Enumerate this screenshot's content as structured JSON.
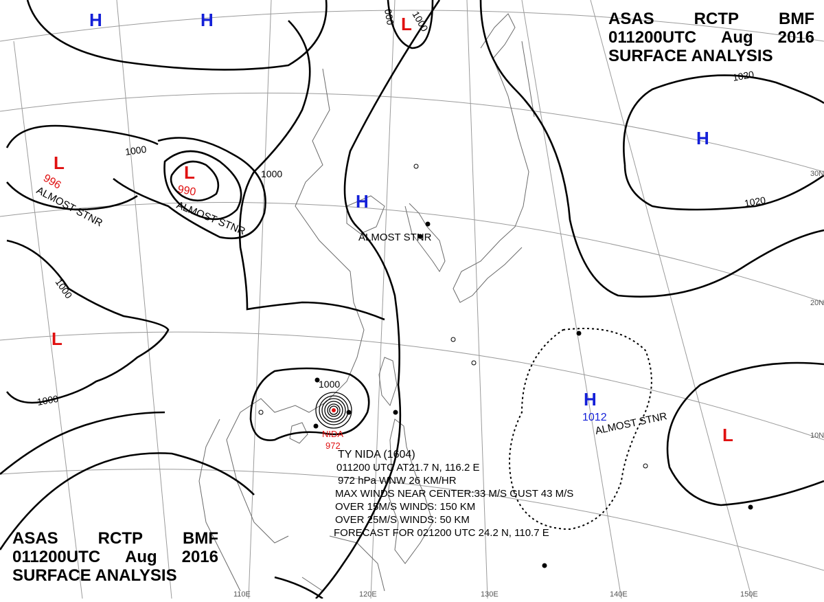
{
  "header_top": {
    "line1": [
      "ASAS",
      "RCTP",
      "BMF"
    ],
    "time": "011200UTC",
    "month": "Aug",
    "year": "2016",
    "title": "SURFACE ANALYSIS"
  },
  "header_bottom": {
    "line1": [
      "ASAS",
      "RCTP",
      "BMF"
    ],
    "time": "011200UTC",
    "month": "Aug",
    "year": "2016",
    "title": "SURFACE ANALYSIS"
  },
  "pressure_centers": [
    {
      "type": "H",
      "value": "",
      "note": ""
    },
    {
      "type": "H",
      "value": "",
      "note": ""
    },
    {
      "type": "L",
      "value": "",
      "note": ""
    },
    {
      "type": "L",
      "value": "996",
      "note": "ALMOST STNR"
    },
    {
      "type": "L",
      "value": "990",
      "note": "ALMOST STNR"
    },
    {
      "type": "H",
      "value": "",
      "note": "ALMOST STNR"
    },
    {
      "type": "H",
      "value": "",
      "note": ""
    },
    {
      "type": "L",
      "value": "",
      "note": ""
    },
    {
      "type": "H",
      "value": "1012",
      "note": "ALMOST STNR"
    },
    {
      "type": "L",
      "value": "",
      "note": ""
    }
  ],
  "isobar_labels": [
    "1000",
    "1000",
    "1000",
    "1000",
    "1000",
    "1000",
    "1020",
    "1020",
    "000"
  ],
  "lat_labels": [
    "30N",
    "20N",
    "10N"
  ],
  "lon_labels": [
    "110E",
    "120E",
    "130E",
    "140E",
    "150E"
  ],
  "typhoon": {
    "name": "NIDA",
    "pressure": "972",
    "lines": [
      "TY  NIDA  (1604)",
      "011200 UTC  AT21.7 N, 116.2 E",
      "972 hPa  WNW  26 KM/HR",
      "MAX WINDS NEAR CENTER:33 M/S GUST 43 M/S",
      "OVER 15M/S WINDS: 150 KM",
      "OVER 25M/S WINDS: 50 KM",
      "FORECAST FOR 021200 UTC 24.2 N, 110.7 E"
    ]
  },
  "colors": {
    "high": "#1420d8",
    "low": "#e01010",
    "ink": "#000000",
    "grid": "#9a9a9a",
    "coast": "#6a6a6a"
  }
}
